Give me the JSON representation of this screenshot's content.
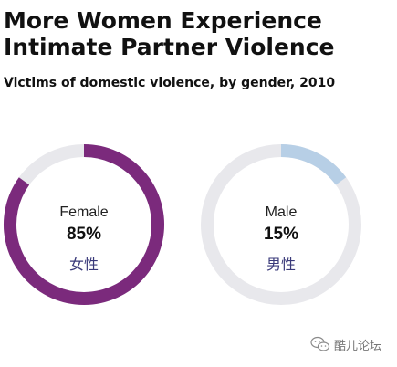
{
  "title_line1": "More Women Experience",
  "title_line2": "Intimate Partner Violence",
  "subtitle": "Victims of domestic violence, by gender, 2010",
  "chart_data": [
    {
      "type": "pie",
      "variant": "donut",
      "label": "Female",
      "label_cn": "女性",
      "value": 85,
      "value_text": "85%",
      "color": "#7b2a7c",
      "track_color": "#e8e8ec"
    },
    {
      "type": "pie",
      "variant": "donut",
      "label": "Male",
      "label_cn": "男性",
      "value": 15,
      "value_text": "15%",
      "color": "#b7cfe6",
      "track_color": "#e8e8ec"
    }
  ],
  "watermark": {
    "text": "酷儿论坛",
    "icon": "wechat-icon"
  }
}
